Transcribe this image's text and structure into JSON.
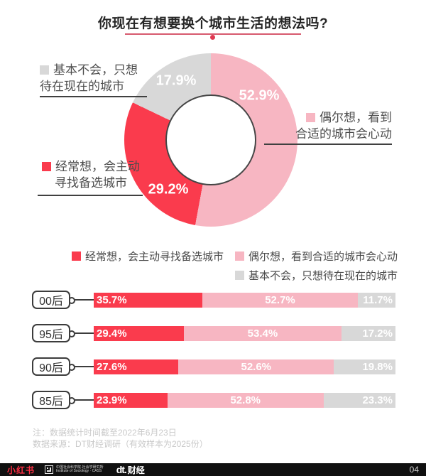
{
  "title": "你现在有想要换个城市生活的想法吗?",
  "colors": {
    "red": "#FA3B4D",
    "pink": "#F7B6C2",
    "gray": "#D8D8D8",
    "accent_line": "#D75A6E",
    "footer_bg": "#101010",
    "xhs_red": "#FF2E43"
  },
  "side_labels": {
    "gray": {
      "line1": "基本不会，只想",
      "line2": "待在现在的城市"
    },
    "red": {
      "line1": "经常想，会主动",
      "line2": "寻找备选城市"
    },
    "pink": {
      "line1": "偶尔想，看到",
      "line2": "合适的城市会心动"
    }
  },
  "legend": {
    "often": "经常想，会主动寻找备选城市",
    "sometimes": "偶尔想，看到合适的城市会心动",
    "never": "基本不会，只想待在现在的城市"
  },
  "chart_data": [
    {
      "type": "pie",
      "donut": true,
      "title": "你现在有想要换个城市生活的想法吗?",
      "start_angle_deg": 0,
      "direction": "clockwise",
      "slices": [
        {
          "label": "偶尔想，看到合适的城市会心动",
          "value": 52.9,
          "color": "#F7B6C2"
        },
        {
          "label": "经常想，会主动寻找备选城市",
          "value": 29.2,
          "color": "#FA3B4D"
        },
        {
          "label": "基本不会，只想待在现在的城市",
          "value": 17.9,
          "color": "#D8D8D8"
        }
      ],
      "value_unit": "%"
    },
    {
      "type": "bar",
      "stacked": true,
      "orientation": "horizontal",
      "categories": [
        "00后",
        "95后",
        "90后",
        "85后"
      ],
      "series": [
        {
          "name": "经常想，会主动寻找备选城市",
          "color": "#FA3B4D",
          "values": [
            35.7,
            29.4,
            27.6,
            23.9
          ]
        },
        {
          "name": "偶尔想，看到合适的城市会心动",
          "color": "#F7B6C2",
          "values": [
            52.7,
            53.4,
            52.6,
            52.8
          ]
        },
        {
          "name": "基本不会，只想待在现在的城市",
          "color": "#D8D8D8",
          "values": [
            11.7,
            17.2,
            19.8,
            23.3
          ]
        }
      ],
      "xlim": [
        0,
        100
      ],
      "value_unit": "%",
      "legend_position": "top"
    }
  ],
  "notes": {
    "line1": "注：数据统计时间截至2022年6月23日",
    "line2": "数据来源：DT财经调研（有效样本为2025份）"
  },
  "footer": {
    "brand_xhs": "小红书",
    "cass_line1": "中国社会科学院·社会学研究所",
    "cass_line2": "Institute of Sociology · CASS",
    "dt_logo": "dt.",
    "dt_text": "财经",
    "page_number": "04"
  }
}
